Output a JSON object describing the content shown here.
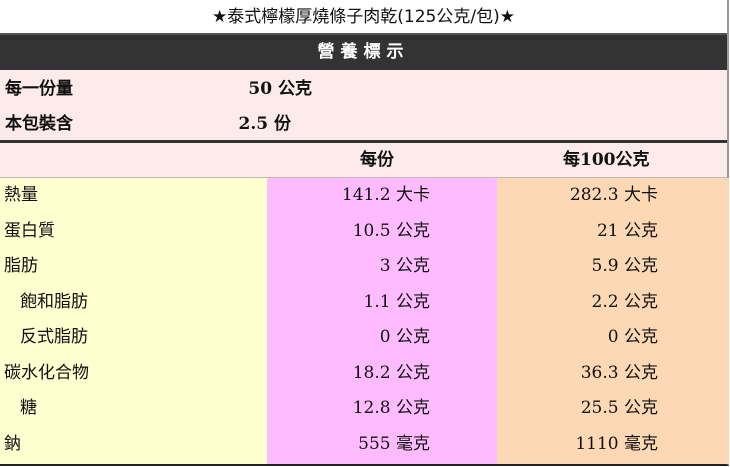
{
  "title": "★泰式檸檬厚燒條子肉乾(125公克/包)★",
  "header": "營養標示",
  "serving": [
    {
      "label": "每一份量",
      "value": "50 公克"
    },
    {
      "label": "本包裝含",
      "value": "2.5 份"
    }
  ],
  "columns": {
    "per_serving": "每份",
    "per_100g": "每100公克"
  },
  "rows": [
    {
      "label": "熱量",
      "per_serving": "141.2 大卡",
      "per_100g": "282.3 大卡",
      "indent": false
    },
    {
      "label": "蛋白質",
      "per_serving": "10.5 公克",
      "per_100g": "21 公克",
      "indent": false
    },
    {
      "label": "脂肪",
      "per_serving": "3 公克",
      "per_100g": "5.9 公克",
      "indent": false
    },
    {
      "label": "飽和脂肪",
      "per_serving": "1.1 公克",
      "per_100g": "2.2 公克",
      "indent": true
    },
    {
      "label": "反式脂肪",
      "per_serving": "0 公克",
      "per_100g": "0 公克",
      "indent": true
    },
    {
      "label": "碳水化合物",
      "per_serving": "18.2 公克",
      "per_100g": "36.3 公克",
      "indent": false
    },
    {
      "label": "糖",
      "per_serving": "12.8 公克",
      "per_100g": "25.5 公克",
      "indent": true
    },
    {
      "label": "鈉",
      "per_serving": "555 毫克",
      "per_100g": "1110 毫克",
      "indent": false
    }
  ],
  "colors": {
    "header": "#333333",
    "serving_bg": "#fdeaea",
    "label_col": "#ffffd0",
    "per_serving_col": "#ffbbff",
    "per_100g_col": "#fdd8b4"
  }
}
